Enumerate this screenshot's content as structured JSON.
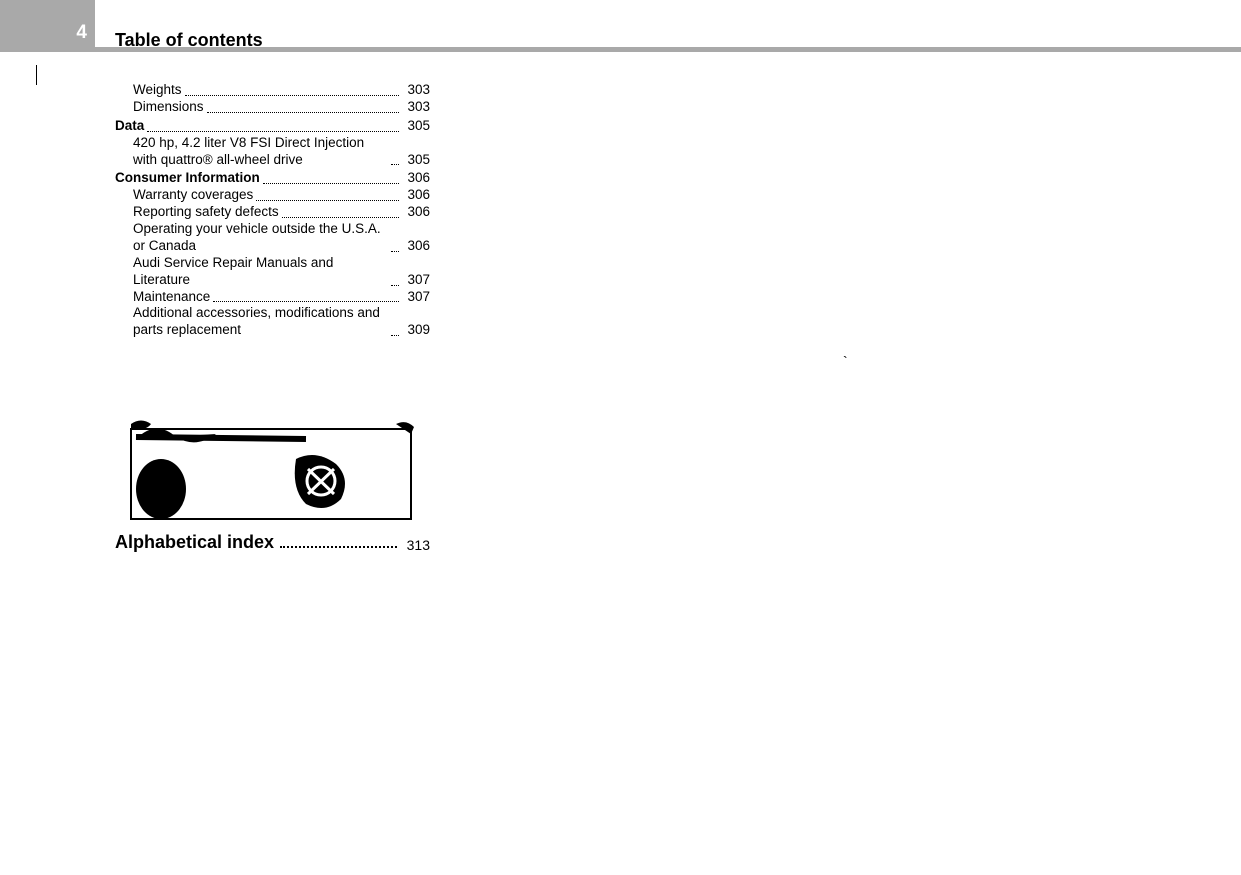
{
  "page_number": "4",
  "title": "Table of contents",
  "sections": [
    {
      "title": null,
      "items": [
        {
          "label": "Weights",
          "page": "303"
        },
        {
          "label": "Dimensions",
          "page": "303"
        }
      ]
    },
    {
      "title": {
        "label": "Data",
        "page": "305"
      },
      "items": [
        {
          "label": "420 hp, 4.2 liter V8 FSI Direct Injection with quattro® all-wheel drive",
          "page": "305"
        }
      ]
    },
    {
      "title": {
        "label": "Consumer Information",
        "page": "306"
      },
      "items": [
        {
          "label": "Warranty coverages",
          "page": "306"
        },
        {
          "label": "Reporting safety defects",
          "page": "306"
        },
        {
          "label": "Operating your vehicle outside the U.S.A. or Canada",
          "page": "306"
        },
        {
          "label": "Audi Service Repair Manuals and Literature",
          "page": "307"
        },
        {
          "label": "Maintenance",
          "page": "307"
        },
        {
          "label": "Additional accessories, modifications and parts replacement",
          "page": "309"
        }
      ]
    }
  ],
  "alpha_index": {
    "label": "Alphabetical index",
    "page": "313"
  },
  "stray": "`"
}
